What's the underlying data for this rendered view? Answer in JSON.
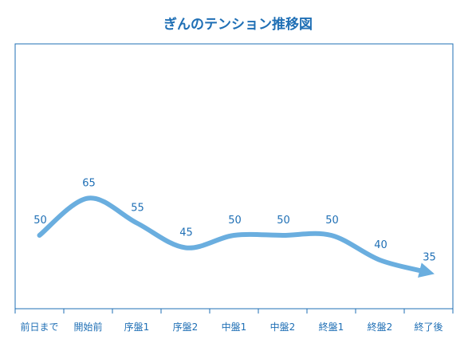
{
  "chart_data": {
    "type": "line",
    "title": "ぎんのテンション推移図",
    "categories": [
      "前日まで",
      "開始前",
      "序盤1",
      "序盤2",
      "中盤1",
      "中盤2",
      "終盤1",
      "終盤2",
      "終了後"
    ],
    "series": [
      {
        "values": [
          50,
          65,
          55,
          45,
          50,
          50,
          50,
          40,
          35
        ]
      }
    ],
    "ylim": [
      0,
      100
    ],
    "grid": false,
    "legend": "none",
    "colors": {
      "line": "#6aaedf",
      "text": "#1f6fb5",
      "axis": "#1f6fb5"
    }
  }
}
